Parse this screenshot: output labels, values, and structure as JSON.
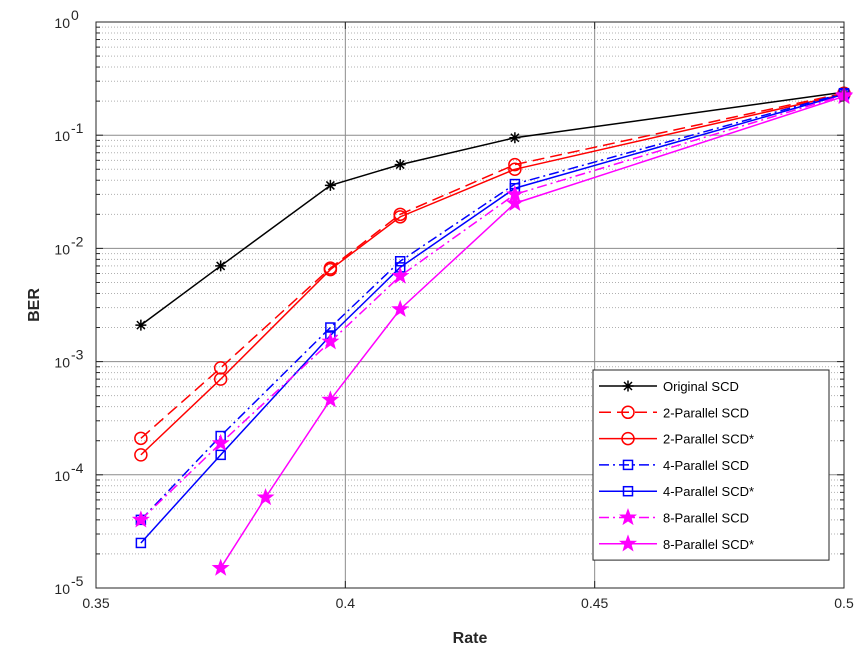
{
  "chart_data": {
    "type": "line",
    "title": "",
    "xlabel": "Rate",
    "ylabel": "BER",
    "xlim": [
      0.35,
      0.5
    ],
    "ylim": [
      1e-05,
      1
    ],
    "yscale": "log",
    "grid": "on (major and minor)",
    "legend_position": "bottom-right",
    "x_ticks": [
      {
        "value": 0.35,
        "label": "0.35"
      },
      {
        "value": 0.4,
        "label": "0.4"
      },
      {
        "value": 0.45,
        "label": "0.45"
      },
      {
        "value": 0.5,
        "label": "0.5"
      }
    ],
    "y_ticks": [
      {
        "value": 1e-05,
        "base": "10",
        "exp": "-5"
      },
      {
        "value": 0.0001,
        "base": "10",
        "exp": "-4"
      },
      {
        "value": 0.001,
        "base": "10",
        "exp": "-3"
      },
      {
        "value": 0.01,
        "base": "10",
        "exp": "-2"
      },
      {
        "value": 0.1,
        "base": "10",
        "exp": "-1"
      },
      {
        "value": 1,
        "base": "10",
        "exp": "0"
      }
    ],
    "series": [
      {
        "name": "Original SCD",
        "color": "#000000",
        "dash": "solid",
        "marker": "asterisk",
        "points": [
          [
            0.359,
            0.0021
          ],
          [
            0.375,
            0.007
          ],
          [
            0.397,
            0.036
          ],
          [
            0.411,
            0.055
          ],
          [
            0.434,
            0.095
          ],
          [
            0.5,
            0.24
          ]
        ]
      },
      {
        "name": "2-Parallel SCD",
        "color": "#ff0000",
        "dash": "dashed",
        "marker": "circle",
        "points": [
          [
            0.359,
            0.00021
          ],
          [
            0.375,
            0.00088
          ],
          [
            0.397,
            0.0067
          ],
          [
            0.411,
            0.02
          ],
          [
            0.434,
            0.055
          ],
          [
            0.5,
            0.235
          ]
        ]
      },
      {
        "name": "2-Parallel SCD*",
        "color": "#ff0000",
        "dash": "solid",
        "marker": "circle",
        "points": [
          [
            0.359,
            0.00015
          ],
          [
            0.375,
            0.0007
          ],
          [
            0.397,
            0.0065
          ],
          [
            0.411,
            0.019
          ],
          [
            0.434,
            0.05
          ],
          [
            0.5,
            0.23
          ]
        ]
      },
      {
        "name": "4-Parallel SCD",
        "color": "#0000ff",
        "dash": "dashdot",
        "marker": "square",
        "points": [
          [
            0.359,
            4e-05
          ],
          [
            0.375,
            0.00022
          ],
          [
            0.397,
            0.002
          ],
          [
            0.411,
            0.0077
          ],
          [
            0.434,
            0.037
          ],
          [
            0.5,
            0.235
          ]
        ]
      },
      {
        "name": "4-Parallel SCD*",
        "color": "#0000ff",
        "dash": "solid",
        "marker": "square",
        "points": [
          [
            0.359,
            2.5e-05
          ],
          [
            0.375,
            0.00015
          ],
          [
            0.397,
            0.0017
          ],
          [
            0.411,
            0.0068
          ],
          [
            0.434,
            0.034
          ],
          [
            0.5,
            0.23
          ]
        ]
      },
      {
        "name": "8-Parallel SCD",
        "color": "#ff00ff",
        "dash": "dashdot",
        "marker": "star",
        "points": [
          [
            0.359,
            4e-05
          ],
          [
            0.375,
            0.00019
          ],
          [
            0.397,
            0.0015
          ],
          [
            0.411,
            0.0057
          ],
          [
            0.434,
            0.03
          ],
          [
            0.5,
            0.225
          ]
        ]
      },
      {
        "name": "8-Parallel SCD*",
        "color": "#ff00ff",
        "dash": "solid",
        "marker": "star",
        "points": [
          [
            0.375,
            1.5e-05
          ],
          [
            0.384,
            6.3e-05
          ],
          [
            0.397,
            0.00046
          ],
          [
            0.411,
            0.0029
          ],
          [
            0.434,
            0.025
          ],
          [
            0.5,
            0.22
          ]
        ]
      }
    ]
  }
}
